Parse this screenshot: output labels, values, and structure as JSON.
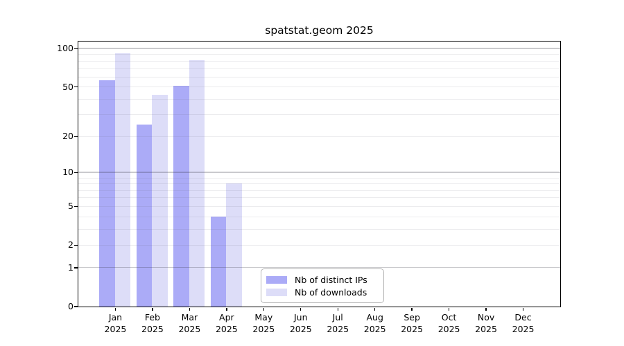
{
  "title": "spatstat.geom 2025",
  "chart_data": {
    "type": "bar",
    "title": "spatstat.geom 2025",
    "scale": "log1p",
    "categories": [
      "Jan",
      "Feb",
      "Mar",
      "Apr",
      "May",
      "Jun",
      "Jul",
      "Aug",
      "Sep",
      "Oct",
      "Nov",
      "Dec"
    ],
    "category_year": "2025",
    "series": [
      {
        "name": "Nb of distinct IPs",
        "color": "#ababf7",
        "values": [
          56,
          25,
          51,
          4,
          0,
          0,
          0,
          0,
          0,
          0,
          0,
          0
        ]
      },
      {
        "name": "Nb of downloads",
        "color": "#ddddf8",
        "values": [
          92,
          43,
          81,
          8,
          0,
          0,
          0,
          0,
          0,
          0,
          0,
          0
        ]
      }
    ],
    "y_ticks": [
      0,
      1,
      2,
      5,
      10,
      20,
      50,
      100
    ],
    "major_gridlines": [
      1,
      10,
      100
    ],
    "minor_gridlines": [
      2,
      3,
      4,
      5,
      6,
      7,
      8,
      9,
      20,
      30,
      40,
      50,
      60,
      70,
      80,
      90
    ],
    "ylim": [
      0,
      114
    ],
    "xlabel": "",
    "ylabel": "",
    "grid": true,
    "legend_position": "bottom-center-inside"
  },
  "colors": {
    "background": "#ffffff",
    "spine": "#000000",
    "major_grid": "rgba(50,50,60,0.26)",
    "minor_grid": "rgba(110,110,120,0.13)",
    "text": "#000000",
    "legend_border": "#b4b4b4"
  }
}
